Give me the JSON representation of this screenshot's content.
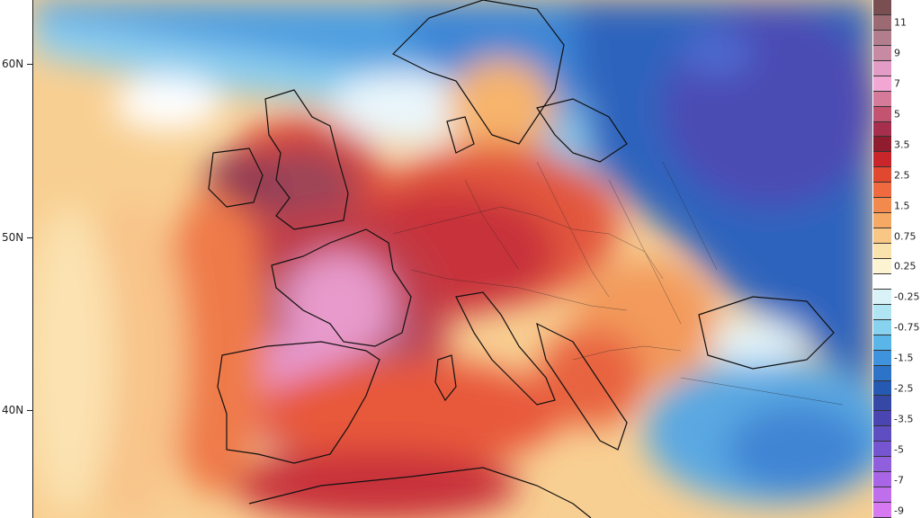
{
  "lat_axis": {
    "labels": [
      {
        "text": "60N",
        "lat": 60
      },
      {
        "text": "50N",
        "lat": 50
      },
      {
        "text": "40N",
        "lat": 40
      }
    ]
  },
  "legend": {
    "levels": [
      {
        "label": "",
        "color": "#7a4f52"
      },
      {
        "label": "11",
        "color": "#9c6a73"
      },
      {
        "label": "",
        "color": "#b27d8c"
      },
      {
        "label": "9",
        "color": "#c88aa3"
      },
      {
        "label": "",
        "color": "#e29cc6"
      },
      {
        "label": "7",
        "color": "#f2a6d4"
      },
      {
        "label": "",
        "color": "#d57a98"
      },
      {
        "label": "5",
        "color": "#c25472"
      },
      {
        "label": "",
        "color": "#a72f4e"
      },
      {
        "label": "3.5",
        "color": "#8f1d2e"
      },
      {
        "label": "",
        "color": "#c8262b"
      },
      {
        "label": "2.5",
        "color": "#e0482f"
      },
      {
        "label": "",
        "color": "#ef6a3e"
      },
      {
        "label": "1.5",
        "color": "#f38a4d"
      },
      {
        "label": "",
        "color": "#f6a964"
      },
      {
        "label": "0.75",
        "color": "#f8c786"
      },
      {
        "label": "",
        "color": "#fae2ad"
      },
      {
        "label": "0.25",
        "color": "#fcf3d3"
      },
      {
        "label": "",
        "color": "#ffffff"
      },
      {
        "label": "-0.25",
        "color": "#d8f2f8"
      },
      {
        "label": "",
        "color": "#b0e6f3"
      },
      {
        "label": "-0.75",
        "color": "#86d2ef"
      },
      {
        "label": "",
        "color": "#5ab6e8"
      },
      {
        "label": "-1.5",
        "color": "#3f93dc"
      },
      {
        "label": "",
        "color": "#2d74c9"
      },
      {
        "label": "-2.5",
        "color": "#2659b2"
      },
      {
        "label": "",
        "color": "#3648a6"
      },
      {
        "label": "-3.5",
        "color": "#4a45b0"
      },
      {
        "label": "",
        "color": "#5e4ec2"
      },
      {
        "label": "-5",
        "color": "#7656d0"
      },
      {
        "label": "",
        "color": "#8f5fdc"
      },
      {
        "label": "-7",
        "color": "#a866e6"
      },
      {
        "label": "",
        "color": "#c06fec"
      },
      {
        "label": "-9",
        "color": "#d77af2"
      }
    ]
  },
  "map": {
    "ocean_color": "#f8c98a",
    "land_anomaly_colors": {
      "iberia": "#e69ad0",
      "france": "#e79acb",
      "central": "#c06a82",
      "britain": "#9c4458",
      "northeast": "#2f5fb8",
      "russia": "#3a47a8",
      "scandinavia": "#3c86d6",
      "turkey": "#5aa9e2",
      "balkans": "#f0a066"
    }
  }
}
